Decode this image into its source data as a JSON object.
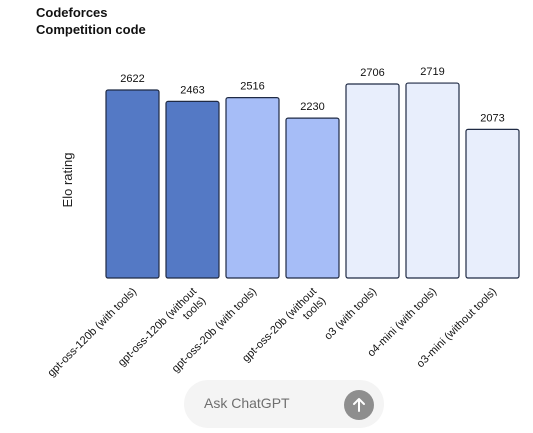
{
  "chart_data": {
    "type": "bar",
    "title": "Codeforces",
    "subtitle": "Competition code",
    "ylabel": "Elo rating",
    "xlabel": "",
    "ylim": [
      0,
      2800
    ],
    "grid": false,
    "categories": [
      "gpt-oss-120b (with tools)",
      "gpt-oss-120b (without tools)",
      "gpt-oss-20b (with tools)",
      "gpt-oss-20b (without tools)",
      "o3 (with tools)",
      "o4-mini (with tools)",
      "o3-mini (without tools)"
    ],
    "values": [
      2622,
      2463,
      2516,
      2230,
      2706,
      2719,
      2073
    ],
    "bar_colors": [
      "#5479c5",
      "#5479c5",
      "#a6bdf7",
      "#a6bdf7",
      "#e8eefc",
      "#e8eefc",
      "#e8eefc"
    ],
    "bar_stroke": "#1f2a44"
  },
  "composer": {
    "placeholder": "Ask ChatGPT",
    "send_icon": "arrow-up-icon"
  }
}
